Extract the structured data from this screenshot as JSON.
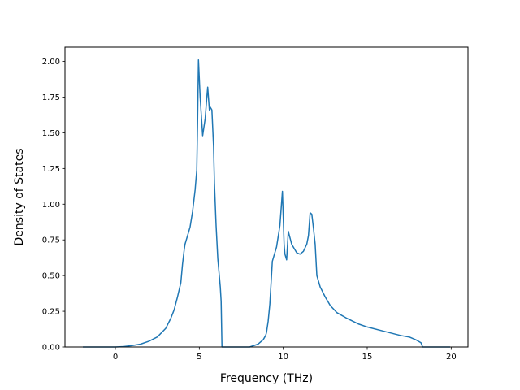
{
  "chart_data": {
    "type": "line",
    "title": "",
    "xlabel": "Frequency (THz)",
    "ylabel": "Density of States",
    "xlim": [
      -3.0,
      21.0
    ],
    "ylim": [
      0.0,
      2.1
    ],
    "grid": false,
    "legend": "none",
    "line_color": "#1f77b4",
    "xticks": [
      {
        "value": 0,
        "label": "0"
      },
      {
        "value": 5,
        "label": "5"
      },
      {
        "value": 10,
        "label": "10"
      },
      {
        "value": 15,
        "label": "15"
      },
      {
        "value": 20,
        "label": "20"
      }
    ],
    "yticks": [
      {
        "value": 0.0,
        "label": "0.00"
      },
      {
        "value": 0.25,
        "label": "0.25"
      },
      {
        "value": 0.5,
        "label": "0.50"
      },
      {
        "value": 0.75,
        "label": "0.75"
      },
      {
        "value": 1.0,
        "label": "1.00"
      },
      {
        "value": 1.25,
        "label": "1.25"
      },
      {
        "value": 1.5,
        "label": "1.50"
      },
      {
        "value": 1.75,
        "label": "1.75"
      },
      {
        "value": 2.0,
        "label": "2.00"
      }
    ],
    "series": [
      {
        "x": [
          -1.9,
          -1.0,
          0.0,
          0.5,
          1.0,
          1.5,
          2.0,
          2.5,
          3.0,
          3.3,
          3.5,
          3.7,
          3.9,
          4.0,
          4.1,
          4.15,
          4.3,
          4.45,
          4.6,
          4.75,
          4.85,
          4.9,
          4.95,
          5.05,
          5.2,
          5.35,
          5.45,
          5.5,
          5.6,
          5.65,
          5.75,
          5.85,
          5.9,
          6.0,
          6.1,
          6.25,
          6.3,
          6.35,
          6.5,
          7.0,
          8.0,
          8.5,
          8.8,
          8.95,
          9.0,
          9.1,
          9.2,
          9.35,
          9.6,
          9.8,
          9.95,
          10.05,
          10.1,
          10.2,
          10.3,
          10.5,
          10.8,
          11.0,
          11.2,
          11.4,
          11.5,
          11.6,
          11.7,
          11.8,
          11.9,
          12.0,
          12.2,
          12.5,
          12.8,
          13.2,
          13.8,
          14.5,
          15.0,
          16.0,
          17.0,
          17.5,
          17.9,
          18.2,
          18.3,
          19.0,
          19.9
        ],
        "y": [
          0.0,
          0.0,
          0.0,
          0.003,
          0.01,
          0.02,
          0.04,
          0.07,
          0.13,
          0.2,
          0.26,
          0.35,
          0.45,
          0.58,
          0.68,
          0.72,
          0.78,
          0.84,
          0.95,
          1.1,
          1.24,
          1.6,
          2.01,
          1.75,
          1.48,
          1.6,
          1.75,
          1.82,
          1.66,
          1.68,
          1.66,
          1.4,
          1.15,
          0.85,
          0.62,
          0.42,
          0.32,
          0.0,
          0.0,
          0.0,
          0.0,
          0.02,
          0.05,
          0.08,
          0.1,
          0.18,
          0.3,
          0.6,
          0.7,
          0.85,
          1.09,
          0.72,
          0.65,
          0.61,
          0.81,
          0.72,
          0.66,
          0.65,
          0.67,
          0.72,
          0.78,
          0.94,
          0.93,
          0.83,
          0.72,
          0.5,
          0.42,
          0.35,
          0.29,
          0.24,
          0.2,
          0.16,
          0.14,
          0.11,
          0.08,
          0.07,
          0.05,
          0.03,
          0.0,
          0.0,
          0.0
        ]
      }
    ]
  }
}
